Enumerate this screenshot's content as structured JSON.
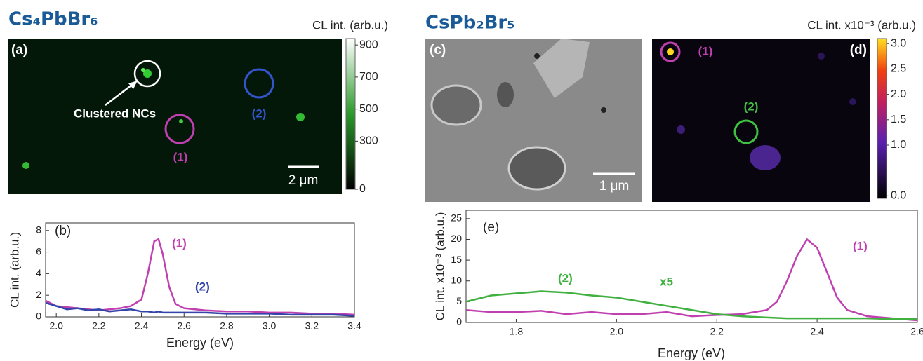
{
  "left_title": "Cs₄PbBr₆",
  "right_title": "CsPb₂Br₅",
  "panel_a": {
    "label": "(a)",
    "annotation": "Clustered NCs",
    "marker_1": "(1)",
    "marker_2": "(2)",
    "scale_bar": "2 μm",
    "colorbar": {
      "title": "CL int. (arb.u.)",
      "lim": [
        0,
        940
      ],
      "ticks": [
        0,
        300,
        500,
        700,
        900
      ]
    }
  },
  "panel_c": {
    "label": "(c)",
    "scale_bar": "1 μm"
  },
  "panel_d": {
    "label": "(d)",
    "marker_1": "(1)",
    "marker_2": "(2)",
    "colorbar": {
      "title": "CL int. x10⁻³ (arb.u.)",
      "lim": [
        -0.05,
        3.1
      ],
      "ticks": [
        {
          "value": 0,
          "label": "0.0"
        },
        {
          "value": 1,
          "label": "1.0"
        },
        1.5,
        {
          "value": 2,
          "label": "2.0"
        },
        2.5,
        {
          "value": 3,
          "label": "3.0"
        }
      ]
    }
  },
  "chart_data": [
    {
      "type": "line",
      "panel_label": "(b)",
      "x_label": "Energy (eV)",
      "y_label": "CL int. (arb.u.)",
      "xlim": [
        1.95,
        3.4
      ],
      "ylim": [
        0,
        8.7
      ],
      "xticks": [
        {
          "value": 2,
          "label": "2.0"
        },
        2.2,
        2.4,
        2.6,
        2.8,
        {
          "value": 3,
          "label": "3.0"
        },
        3.2,
        3.4
      ],
      "yticks": [
        0,
        2,
        4,
        6,
        8
      ],
      "x": [
        1.95,
        2.0,
        2.05,
        2.1,
        2.15,
        2.2,
        2.25,
        2.3,
        2.35,
        2.4,
        2.43,
        2.46,
        2.48,
        2.5,
        2.53,
        2.56,
        2.6,
        2.7,
        2.8,
        2.9,
        3.0,
        3.1,
        3.2,
        3.3,
        3.4
      ],
      "series": [
        {
          "name": "(1)",
          "color": "#c040b0",
          "values": [
            1.5,
            1.0,
            0.9,
            0.8,
            0.7,
            0.6,
            0.7,
            0.8,
            1.0,
            1.6,
            4.0,
            7.0,
            7.2,
            5.8,
            2.8,
            1.2,
            0.8,
            0.6,
            0.5,
            0.5,
            0.4,
            0.4,
            0.3,
            0.3,
            0.2
          ]
        },
        {
          "name": "(2)",
          "color": "#3344aa",
          "values": [
            1.3,
            1.0,
            0.7,
            0.8,
            0.6,
            0.7,
            0.5,
            0.6,
            0.7,
            0.5,
            0.5,
            0.4,
            0.5,
            0.4,
            0.4,
            0.4,
            0.4,
            0.4,
            0.3,
            0.3,
            0.3,
            0.2,
            0.2,
            0.2,
            0.1
          ]
        }
      ]
    },
    {
      "type": "line",
      "panel_label": "(e)",
      "x_label": "Energy (eV)",
      "y_label": "CL int. x10⁻³ (arb.u.)",
      "annotation": "x5",
      "xlim": [
        1.7,
        2.6
      ],
      "ylim": [
        0,
        27
      ],
      "xticks": [
        1.8,
        {
          "value": 2,
          "label": "2.0"
        },
        2.2,
        2.4,
        2.6
      ],
      "yticks": [
        0,
        5,
        10,
        15,
        20,
        25
      ],
      "x": [
        1.7,
        1.75,
        1.8,
        1.85,
        1.9,
        1.95,
        2.0,
        2.05,
        2.1,
        2.15,
        2.2,
        2.25,
        2.3,
        2.32,
        2.34,
        2.36,
        2.38,
        2.4,
        2.42,
        2.44,
        2.46,
        2.5,
        2.55,
        2.6
      ],
      "series": [
        {
          "name": "(1)",
          "color": "#c040b0",
          "values": [
            3,
            2.5,
            2.5,
            2.8,
            2,
            2.5,
            2,
            2,
            2.5,
            1.5,
            1.8,
            2,
            3,
            5,
            10,
            16,
            20,
            18,
            12,
            6,
            3,
            1.5,
            1,
            0.5
          ]
        },
        {
          "name": "(2)",
          "color": "#40b040",
          "values": [
            5,
            6.5,
            7,
            7.5,
            7.2,
            6.5,
            6,
            5,
            4,
            3,
            2,
            1.5,
            1.2,
            1.1,
            1,
            1,
            1,
            1,
            1,
            1,
            1,
            1,
            0.8,
            0.8
          ]
        }
      ]
    }
  ]
}
